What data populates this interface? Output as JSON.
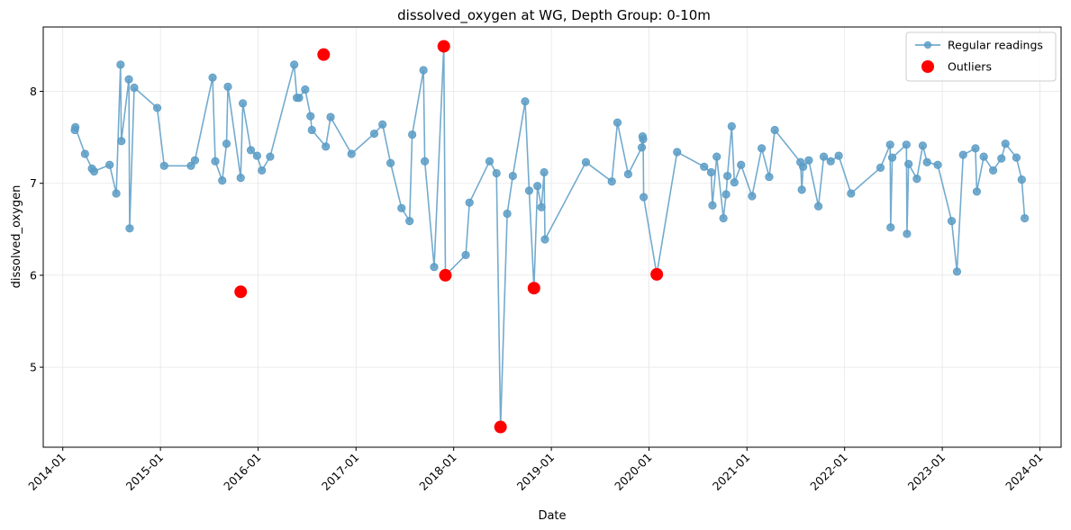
{
  "chart_data": {
    "type": "line",
    "title": "dissolved_oxygen at WG, Depth Group: 0-10m",
    "xlabel": "Date",
    "ylabel": "dissolved_oxygen",
    "xlim": [
      "2013-10-20",
      "2024-03-20"
    ],
    "ylim": [
      4.13,
      8.7
    ],
    "x_ticks": [
      "2014-01",
      "2015-01",
      "2016-01",
      "2017-01",
      "2018-01",
      "2019-01",
      "2020-01",
      "2021-01",
      "2022-01",
      "2023-01",
      "2024-01"
    ],
    "y_ticks": [
      5,
      6,
      7,
      8
    ],
    "grid": true,
    "legend_position": "top-right",
    "colors": {
      "regular": "#5b9cc6",
      "outlier": "#ff0000"
    },
    "series": [
      {
        "name": "Regular readings",
        "style": "line-with-markers",
        "points": [
          [
            "2014-02-15",
            7.58
          ],
          [
            "2014-02-17",
            7.61
          ],
          [
            "2014-03-25",
            7.32
          ],
          [
            "2014-04-20",
            7.16
          ],
          [
            "2014-04-28",
            7.13
          ],
          [
            "2014-06-25",
            7.2
          ],
          [
            "2014-07-20",
            6.89
          ],
          [
            "2014-08-05",
            8.29
          ],
          [
            "2014-08-08",
            7.46
          ],
          [
            "2014-09-05",
            8.13
          ],
          [
            "2014-09-08",
            6.51
          ],
          [
            "2014-09-25",
            8.04
          ],
          [
            "2014-12-20",
            7.82
          ],
          [
            "2015-01-15",
            7.19
          ],
          [
            "2015-04-25",
            7.19
          ],
          [
            "2015-05-10",
            7.25
          ],
          [
            "2015-07-15",
            8.15
          ],
          [
            "2015-07-25",
            7.24
          ],
          [
            "2015-08-20",
            7.03
          ],
          [
            "2015-09-05",
            7.43
          ],
          [
            "2015-09-10",
            8.05
          ],
          [
            "2015-10-28",
            7.06
          ],
          [
            "2015-11-05",
            7.87
          ],
          [
            "2015-12-05",
            7.36
          ],
          [
            "2015-12-28",
            7.3
          ],
          [
            "2016-01-15",
            7.14
          ],
          [
            "2016-02-15",
            7.29
          ],
          [
            "2016-05-15",
            8.29
          ],
          [
            "2016-05-25",
            7.93
          ],
          [
            "2016-06-02",
            7.93
          ],
          [
            "2016-06-25",
            8.02
          ],
          [
            "2016-07-15",
            7.73
          ],
          [
            "2016-07-20",
            7.58
          ],
          [
            "2016-09-10",
            7.4
          ],
          [
            "2016-09-28",
            7.72
          ],
          [
            "2016-12-15",
            7.32
          ],
          [
            "2017-03-10",
            7.54
          ],
          [
            "2017-04-10",
            7.64
          ],
          [
            "2017-05-10",
            7.22
          ],
          [
            "2017-06-20",
            6.73
          ],
          [
            "2017-07-20",
            6.59
          ],
          [
            "2017-07-30",
            7.53
          ],
          [
            "2017-09-10",
            8.23
          ],
          [
            "2017-09-15",
            7.24
          ],
          [
            "2017-10-20",
            6.09
          ],
          [
            "2017-11-25",
            8.49
          ],
          [
            "2017-12-01",
            6.0
          ],
          [
            "2018-02-15",
            6.22
          ],
          [
            "2018-03-01",
            6.79
          ],
          [
            "2018-05-15",
            7.24
          ],
          [
            "2018-06-10",
            7.11
          ],
          [
            "2018-06-25",
            4.35
          ],
          [
            "2018-07-20",
            6.67
          ],
          [
            "2018-08-10",
            7.08
          ],
          [
            "2018-09-25",
            7.89
          ],
          [
            "2018-10-10",
            6.92
          ],
          [
            "2018-10-28",
            5.86
          ],
          [
            "2018-11-10",
            6.97
          ],
          [
            "2018-11-25",
            6.74
          ],
          [
            "2018-12-05",
            7.12
          ],
          [
            "2018-12-08",
            6.39
          ],
          [
            "2019-05-10",
            7.23
          ],
          [
            "2019-08-15",
            7.02
          ],
          [
            "2019-09-05",
            7.66
          ],
          [
            "2019-10-15",
            7.1
          ],
          [
            "2019-12-05",
            7.39
          ],
          [
            "2019-12-08",
            7.51
          ],
          [
            "2019-12-10",
            7.48
          ],
          [
            "2019-12-12",
            6.85
          ],
          [
            "2020-01-30",
            6.01
          ],
          [
            "2020-04-15",
            7.34
          ],
          [
            "2020-07-25",
            7.18
          ],
          [
            "2020-08-20",
            7.12
          ],
          [
            "2020-08-25",
            6.76
          ],
          [
            "2020-09-10",
            7.29
          ],
          [
            "2020-10-05",
            6.62
          ],
          [
            "2020-10-15",
            6.88
          ],
          [
            "2020-10-20",
            7.08
          ],
          [
            "2020-11-05",
            7.62
          ],
          [
            "2020-11-15",
            7.01
          ],
          [
            "2020-12-10",
            7.2
          ],
          [
            "2021-01-20",
            6.86
          ],
          [
            "2021-02-25",
            7.38
          ],
          [
            "2021-03-25",
            7.07
          ],
          [
            "2021-04-15",
            7.58
          ],
          [
            "2021-07-20",
            7.23
          ],
          [
            "2021-07-25",
            6.93
          ],
          [
            "2021-07-30",
            7.18
          ],
          [
            "2021-08-20",
            7.25
          ],
          [
            "2021-09-25",
            6.75
          ],
          [
            "2021-10-15",
            7.29
          ],
          [
            "2021-11-10",
            7.24
          ],
          [
            "2021-12-10",
            7.3
          ],
          [
            "2022-01-25",
            6.89
          ],
          [
            "2022-05-15",
            7.17
          ],
          [
            "2022-06-20",
            7.42
          ],
          [
            "2022-06-22",
            6.52
          ],
          [
            "2022-06-28",
            7.28
          ],
          [
            "2022-08-20",
            7.42
          ],
          [
            "2022-08-22",
            6.45
          ],
          [
            "2022-08-28",
            7.21
          ],
          [
            "2022-09-28",
            7.05
          ],
          [
            "2022-10-20",
            7.41
          ],
          [
            "2022-11-05",
            7.23
          ],
          [
            "2022-12-15",
            7.2
          ],
          [
            "2023-02-05",
            6.59
          ],
          [
            "2023-02-25",
            6.04
          ],
          [
            "2023-03-20",
            7.31
          ],
          [
            "2023-05-05",
            7.38
          ],
          [
            "2023-05-10",
            6.91
          ],
          [
            "2023-06-05",
            7.29
          ],
          [
            "2023-07-10",
            7.14
          ],
          [
            "2023-08-10",
            7.27
          ],
          [
            "2023-08-25",
            7.43
          ],
          [
            "2023-10-05",
            7.28
          ],
          [
            "2023-10-25",
            7.04
          ],
          [
            "2023-11-05",
            6.62
          ]
        ]
      },
      {
        "name": "Outliers",
        "style": "markers",
        "points": [
          [
            "2015-10-28",
            5.82
          ],
          [
            "2016-09-02",
            8.4
          ],
          [
            "2017-11-25",
            8.49
          ],
          [
            "2017-12-01",
            6.0
          ],
          [
            "2018-06-25",
            4.35
          ],
          [
            "2018-10-28",
            5.86
          ],
          [
            "2020-01-30",
            6.01
          ]
        ]
      }
    ]
  }
}
